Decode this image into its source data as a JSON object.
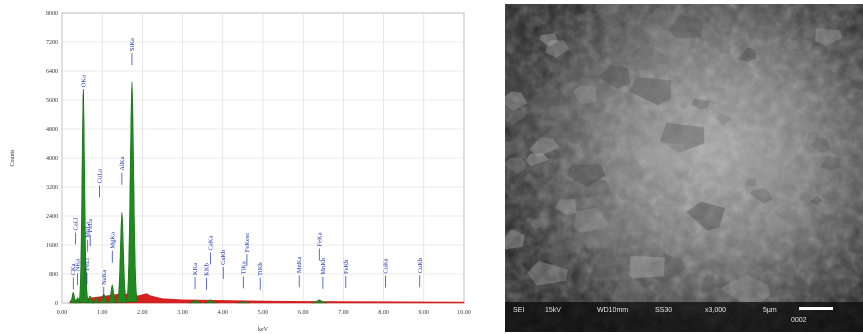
{
  "chart_data": {
    "type": "line",
    "title": "",
    "xlabel": "keV",
    "ylabel": "Counts",
    "xlim": [
      0,
      10
    ],
    "ylim": [
      0,
      8000
    ],
    "x_ticks": [
      "0.00",
      "1.00",
      "2.00",
      "3.00",
      "4.00",
      "5.00",
      "6.00",
      "7.00",
      "8.00",
      "9.00",
      "10.00"
    ],
    "y_ticks": [
      "0",
      "800",
      "1600",
      "2400",
      "3200",
      "4000",
      "4800",
      "5600",
      "6400",
      "7200",
      "8000"
    ],
    "grid": true,
    "series": [
      {
        "color": "#1f8a1f",
        "peaks": [
          {
            "x": 0.28,
            "y": 300,
            "w": 0.03
          },
          {
            "x": 0.39,
            "y": 150,
            "w": 0.03
          },
          {
            "x": 0.53,
            "y": 5900,
            "w": 0.035
          },
          {
            "x": 0.58,
            "y": 900,
            "w": 0.03
          },
          {
            "x": 0.7,
            "y": 200,
            "w": 0.03
          },
          {
            "x": 0.85,
            "y": 150,
            "w": 0.03
          },
          {
            "x": 1.04,
            "y": 250,
            "w": 0.035
          },
          {
            "x": 1.25,
            "y": 500,
            "w": 0.035
          },
          {
            "x": 1.49,
            "y": 2500,
            "w": 0.04
          },
          {
            "x": 1.74,
            "y": 6100,
            "w": 0.045
          },
          {
            "x": 3.31,
            "y": 80,
            "w": 0.05
          },
          {
            "x": 3.69,
            "y": 90,
            "w": 0.05
          },
          {
            "x": 4.51,
            "y": 40,
            "w": 0.05
          },
          {
            "x": 6.4,
            "y": 90,
            "w": 0.06
          }
        ]
      },
      {
        "color": "#d42020",
        "background": [
          [
            0.2,
            60
          ],
          [
            1.0,
            180
          ],
          [
            1.5,
            260
          ],
          [
            1.9,
            200
          ],
          [
            2.1,
            260
          ],
          [
            2.2,
            200
          ],
          [
            2.5,
            120
          ],
          [
            3.0,
            90
          ],
          [
            4.0,
            70
          ],
          [
            5.0,
            55
          ],
          [
            6.0,
            45
          ],
          [
            7.0,
            40
          ],
          [
            8.0,
            35
          ],
          [
            9.0,
            30
          ],
          [
            10.0,
            25
          ]
        ]
      }
    ],
    "annotations": [
      {
        "label": "CKa",
        "x": 0.28,
        "y": 760
      },
      {
        "label": "NKa",
        "x": 0.39,
        "y": 880
      },
      {
        "label": "OKa",
        "x": 0.53,
        "y": 5950
      },
      {
        "label": "CaLl",
        "x": 0.34,
        "y": 2000
      },
      {
        "label": "FeLa",
        "x": 0.7,
        "y": 1950
      },
      {
        "label": "MnLa",
        "x": 0.64,
        "y": 1800
      },
      {
        "label": "FeLl",
        "x": 0.62,
        "y": 900
      },
      {
        "label": "NaKa",
        "x": 1.04,
        "y": 500
      },
      {
        "label": "MgKa",
        "x": 1.25,
        "y": 1500
      },
      {
        "label": "CuLa",
        "x": 0.93,
        "y": 3300
      },
      {
        "label": "AlKa",
        "x": 1.49,
        "y": 3650
      },
      {
        "label": "SiKa",
        "x": 1.74,
        "y": 6950
      },
      {
        "label": "KKa",
        "x": 3.31,
        "y": 770
      },
      {
        "label": "KKb",
        "x": 3.59,
        "y": 750
      },
      {
        "label": "CaKa",
        "x": 3.69,
        "y": 1450
      },
      {
        "label": "CaKb",
        "x": 4.01,
        "y": 1050
      },
      {
        "label": "TiKa",
        "x": 4.51,
        "y": 790
      },
      {
        "label": "FeKesc",
        "x": 4.6,
        "y": 1400
      },
      {
        "label": "TiKb",
        "x": 4.93,
        "y": 750
      },
      {
        "label": "MnKa",
        "x": 5.9,
        "y": 820
      },
      {
        "label": "MnKb",
        "x": 6.49,
        "y": 780
      },
      {
        "label": "FeKa",
        "x": 6.4,
        "y": 1560
      },
      {
        "label": "FeKb",
        "x": 7.06,
        "y": 800
      },
      {
        "label": "CuKa",
        "x": 8.05,
        "y": 810
      },
      {
        "label": "CuKb",
        "x": 8.9,
        "y": 820
      }
    ]
  },
  "sem": {
    "mode": "SEI",
    "voltage": "15kV",
    "working_distance": "WD10mm",
    "spot": "SS30",
    "magnification": "x3,000",
    "scale": "5µm",
    "image_no": "0002"
  }
}
